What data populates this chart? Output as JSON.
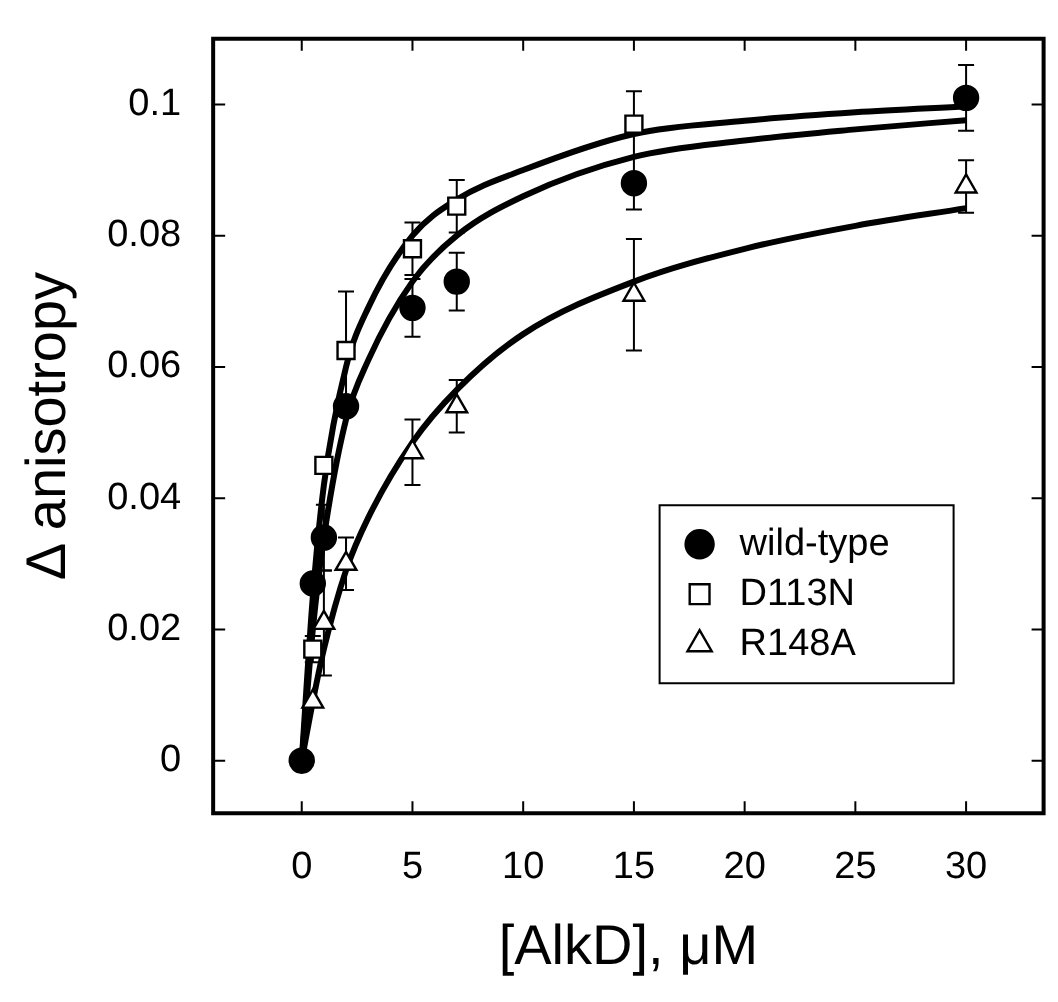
{
  "chart_data": {
    "type": "scatter",
    "xlabel": "[AlkD], μM",
    "ylabel": "Δ anisotropy",
    "xlim": [
      -4,
      33.5
    ],
    "ylim": [
      -0.008,
      0.11
    ],
    "xticks": [
      0,
      5,
      10,
      15,
      20,
      25,
      30
    ],
    "yticks": [
      0,
      {
        "value": 0.02,
        "label": "0.02"
      },
      {
        "value": 0.04,
        "label": "0.04"
      },
      {
        "value": 0.06,
        "label": "0.06"
      },
      {
        "value": 0.08,
        "label": "0.08"
      },
      {
        "value": 0.1,
        "label": "0.1"
      }
    ],
    "legend": "bottom right",
    "series": [
      {
        "name": "wild-type",
        "color": "#000000",
        "marker": "circle",
        "x": [
          0,
          0.5,
          1,
          2,
          5,
          7,
          15,
          30
        ],
        "values": [
          0,
          0.027,
          0.034,
          0.054,
          0.069,
          0.073,
          0.088,
          0.101
        ],
        "errors": [
          null,
          null,
          0.005,
          null,
          0.0044,
          0.0044,
          0.004,
          0.005
        ]
      },
      {
        "name": "D113N",
        "color": "#000000",
        "marker": "square",
        "x": [
          0.5,
          1,
          2,
          5,
          7,
          15
        ],
        "values": [
          0.017,
          0.045,
          0.0625,
          0.078,
          0.0845,
          0.097
        ],
        "errors": [
          0.002,
          null,
          0.009,
          0.004,
          0.004,
          0.005
        ]
      },
      {
        "name": "R148A",
        "color": "#000000",
        "marker": "triangle",
        "x": [
          0.5,
          1,
          2,
          5,
          7,
          15,
          30
        ],
        "values": [
          0.009,
          0.021,
          0.03,
          0.047,
          0.054,
          0.071,
          0.0875
        ],
        "errors": [
          null,
          0.008,
          0.004,
          0.005,
          0.004,
          0.0085,
          0.004
        ]
      },
      {
        "type": "line",
        "color": "#000000",
        "marker": "none",
        "x": [
          0,
          0.5,
          1,
          2,
          3,
          5,
          7,
          10,
          15,
          20,
          25,
          30
        ],
        "values": [
          0,
          0.025,
          0.042,
          0.06,
          0.069,
          0.08,
          0.0855,
          0.09,
          0.0955,
          0.0975,
          0.0988,
          0.0997
        ]
      },
      {
        "type": "line",
        "color": "#000000",
        "marker": "none",
        "x": [
          0,
          0.5,
          1,
          2,
          3,
          5,
          7,
          10,
          15,
          20,
          25,
          30
        ],
        "values": [
          0,
          0.02,
          0.034,
          0.052,
          0.061,
          0.073,
          0.08,
          0.086,
          0.092,
          0.0945,
          0.0962,
          0.0976
        ]
      },
      {
        "type": "line",
        "color": "#000000",
        "marker": "none",
        "x": [
          0,
          0.5,
          1,
          2,
          3,
          5,
          7,
          10,
          15,
          20,
          25,
          30
        ],
        "values": [
          0,
          0.009,
          0.017,
          0.029,
          0.037,
          0.0485,
          0.0565,
          0.065,
          0.073,
          0.078,
          0.0815,
          0.0842
        ]
      }
    ]
  }
}
